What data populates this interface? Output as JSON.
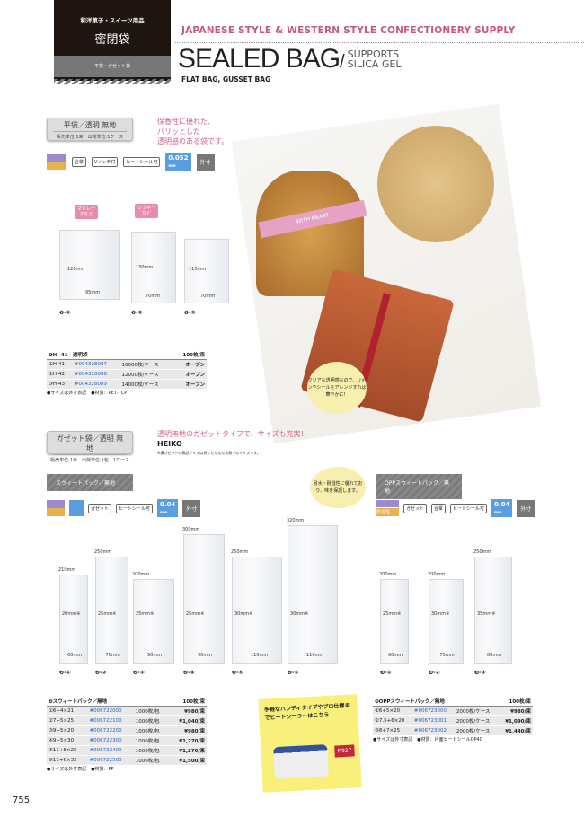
{
  "header": {
    "category": "和洋菓子・スイーツ用品",
    "title": "密閉袋",
    "subtitle": "平袋・ガゼット袋",
    "english": "JAPANESE STYLE & WESTERN STYLE CONFECTIONERY SUPPLY",
    "big_title": "SEALED BAG",
    "slash": "/",
    "supports": "SUPPORTS",
    "silica": "SILICA GEL",
    "types": "FLAT BAG, GUSSET BAG"
  },
  "s1": {
    "box_title": "平袋／透明 無地",
    "box_units": "販売単位:1束　出荷単位:1ケース",
    "desc": [
      "保香性に優れた、",
      "パリッとした",
      "透明感のある袋です。"
    ],
    "icons": [
      "合掌",
      "Vノッチ付",
      "ヒートシール可"
    ],
    "thickness": "0.052",
    "thickness_unit": "mm",
    "outer": "外寸",
    "callouts": [
      "マドレーヌなど",
      "クッキーなど"
    ],
    "bags": [
      {
        "h": "120mm",
        "w": "95mm",
        "label": "❶-①"
      },
      {
        "h": "130mm",
        "w": "70mm",
        "label": "❶-②"
      },
      {
        "h": "115mm",
        "w": "70mm",
        "label": "❶-③"
      }
    ],
    "table": {
      "title": "❶H−41　透明袋",
      "unit": "100枚/束",
      "rows": [
        [
          "①H-41",
          "#004328087",
          "10000枚/ケース",
          "オープン"
        ],
        [
          "②H-42",
          "#004328088",
          "12000枚/ケース",
          "オープン"
        ],
        [
          "③H-43",
          "#004328089",
          "14000枚/ケース",
          "オープン"
        ]
      ],
      "note": "●サイズは外寸表記　●材質：PET／CP"
    },
    "photo_cloud": "クリアな透明感なので、リボンやシールをアレンジすれば華やかに！",
    "photo_label": "WITH HEART"
  },
  "s2": {
    "box_title": "ガゼット袋／透明 無地",
    "box_units": "販売単位:1束　出荷単位:1包・1ケース",
    "desc": "透明無地のガゼットタイプで、サイズも充実！",
    "brand": "HEIKO",
    "gusset_note": "※横ガゼットの表記サイズは折りたたんだ状態でのサイズです。",
    "strip": "スウィートパック／無地",
    "icons": [
      "ガゼット",
      "ヒートシール可"
    ],
    "thickness": "0.04",
    "thickness_unit": "mm",
    "outer": "外寸",
    "bags": [
      {
        "h": "210mm",
        "w": "60mm",
        "g": "20mm※",
        "label": "❷-①"
      },
      {
        "h": "250mm",
        "w": "70mm",
        "g": "25mm※",
        "label": "❷-②"
      },
      {
        "h": "200mm",
        "w": "90mm",
        "g": "25mm※",
        "label": "❷-③"
      },
      {
        "h": "300mm",
        "w": "90mm",
        "g": "25mm※",
        "label": "❷-④"
      },
      {
        "h": "250mm",
        "w": "110mm",
        "g": "30mm※",
        "label": "❷-⑤"
      },
      {
        "h": "320mm",
        "w": "110mm",
        "g": "30mm※",
        "label": "❷-⑥"
      }
    ],
    "table": {
      "title": "❷スウィートパック／無地",
      "unit": "100枚/束",
      "rows": [
        [
          "①6+4×21",
          "#006722000",
          "1000枚/包",
          "¥980/束"
        ],
        [
          "②7+5×25",
          "#006722100",
          "1000枚/包",
          "¥1,040/束"
        ],
        [
          "③9+5×20",
          "#006722200",
          "1000枚/包",
          "¥980/束"
        ],
        [
          "④9+5×30",
          "#006722300",
          "1000枚/包",
          "¥1,270/束"
        ],
        [
          "⑤11+6×25",
          "#006722400",
          "1000枚/包",
          "¥1,270/束"
        ],
        [
          "⑥11+6×32",
          "#006722500",
          "1000枚/包",
          "¥1,500/束"
        ]
      ],
      "note": "●サイズは外寸表記　●材質：PP"
    }
  },
  "s3": {
    "cloud": "耐水・耐湿性に優れており、味を保護します。",
    "strip": "OPPスウィートパック／無地",
    "icons": [
      "ガゼット",
      "合掌",
      "ヒートシール可"
    ],
    "badge": "防湿性",
    "thickness": "0.04",
    "thickness_unit": "mm",
    "outer": "外寸",
    "bags": [
      {
        "h": "200mm",
        "w": "60mm",
        "g": "25mm※",
        "label": "❸-①"
      },
      {
        "h": "200mm",
        "w": "75mm",
        "g": "30mm※",
        "label": "❸-②"
      },
      {
        "h": "250mm",
        "w": "80mm",
        "g": "35mm※",
        "label": "❸-③"
      }
    ],
    "table": {
      "title": "❸OPPスウィートパック／無地",
      "unit": "100枚/束",
      "rows": [
        [
          "①6+5×20",
          "#006723000",
          "2000枚/ケース",
          "¥980/束"
        ],
        [
          "②7.5+6×20",
          "#006723001",
          "2000枚/ケース",
          "¥1,090/束"
        ],
        [
          "③8+7×25",
          "#006723002",
          "2000枚/ケース",
          "¥1,440/束"
        ]
      ],
      "note": "●サイズは外寸表記　●材質：片面ヒートシールOP40"
    }
  },
  "promo": {
    "text": "手軽なハンディタイプやプロ仕様までヒートシーラーはこちら",
    "page": "P.927"
  },
  "page_number": "755"
}
